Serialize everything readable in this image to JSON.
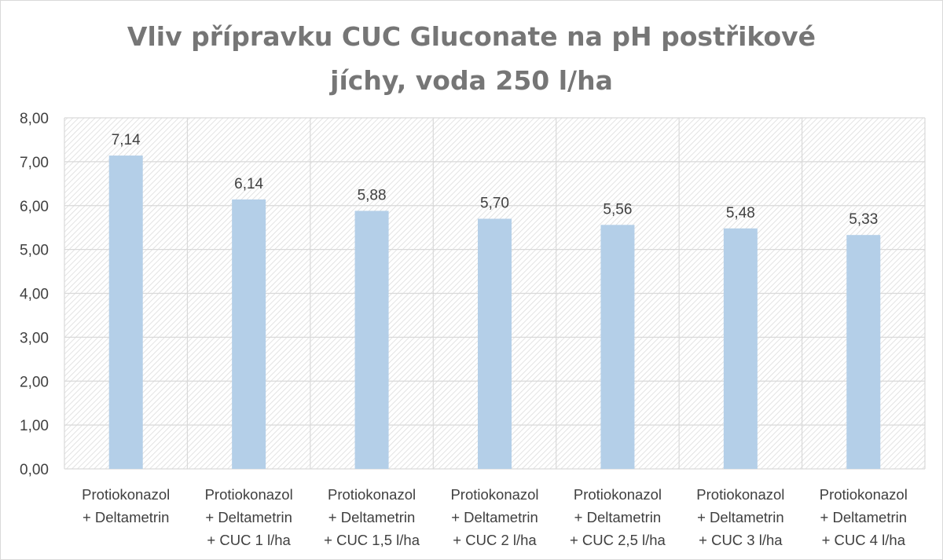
{
  "chart_data": {
    "type": "bar",
    "title": "Vliv přípravku CUC Gluconate na pH postřikové jíchy, voda 250 l/ha",
    "title_lines": [
      "Vliv přípravku CUC Gluconate na pH postřikové",
      "jíchy, voda 250 l/ha"
    ],
    "categories": [
      [
        "Protiokonazol",
        "+ Deltametrin"
      ],
      [
        "Protiokonazol",
        "+ Deltametrin",
        "+ CUC 1 l/ha"
      ],
      [
        "Protiokonazol",
        "+ Deltametrin",
        "+ CUC 1,5 l/ha"
      ],
      [
        "Protiokonazol",
        "+ Deltametrin",
        "+ CUC 2 l/ha"
      ],
      [
        "Protiokonazol",
        "+ Deltametrin",
        "+ CUC 2,5 l/ha"
      ],
      [
        "Protiokonazol",
        "+ Deltametrin",
        "+ CUC 3 l/ha"
      ],
      [
        "Protiokonazol",
        "+ Deltametrin",
        "+ CUC 4 l/ha"
      ]
    ],
    "values": [
      7.14,
      6.14,
      5.88,
      5.7,
      5.56,
      5.48,
      5.33
    ],
    "data_labels": [
      "7,14",
      "6,14",
      "5,88",
      "5,70",
      "5,56",
      "5,48",
      "5,33"
    ],
    "yticks": [
      "0,00",
      "1,00",
      "2,00",
      "3,00",
      "4,00",
      "5,00",
      "6,00",
      "7,00",
      "8,00"
    ],
    "ylim": [
      0,
      8
    ],
    "xlabel": "",
    "ylabel": "",
    "grid": true,
    "legend": "none",
    "colors": {
      "bar": "#b4cfe8",
      "grid": "#d9d9d9",
      "hatch": "#dcdcdc",
      "title": "#767676",
      "text": "#404040"
    }
  }
}
